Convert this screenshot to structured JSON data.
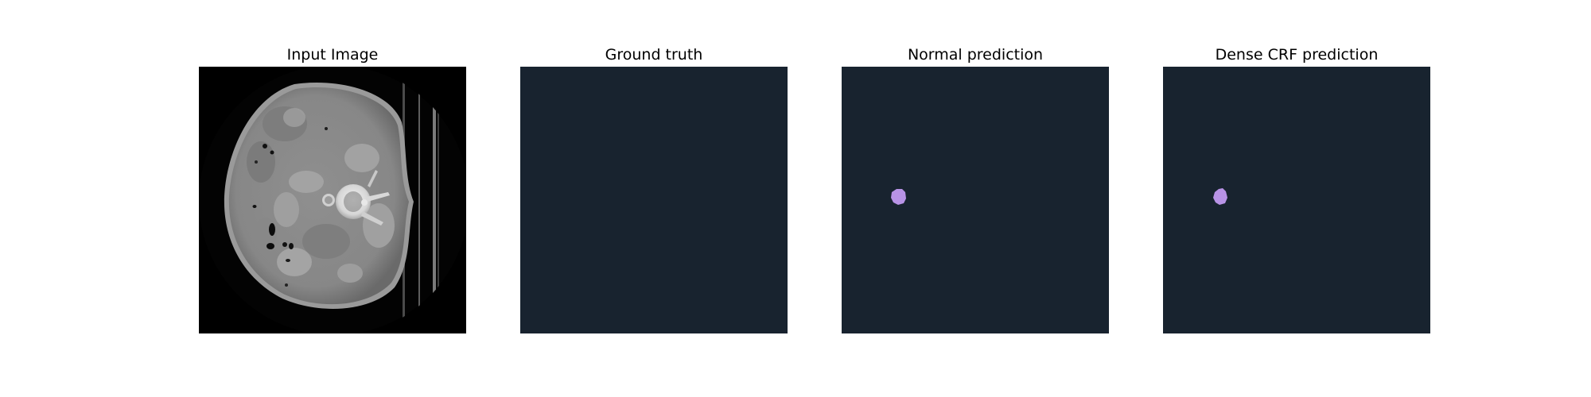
{
  "panels": [
    {
      "title": "Input Image"
    },
    {
      "title": "Ground truth"
    },
    {
      "title": "Normal prediction"
    },
    {
      "title": "Dense CRF prediction"
    }
  ],
  "colors": {
    "background": "#ffffff",
    "mask_background": "#18232f",
    "prediction_mask": "#b893e6",
    "ct_background": "#000000",
    "ct_tissue": "#8c8c8c"
  }
}
